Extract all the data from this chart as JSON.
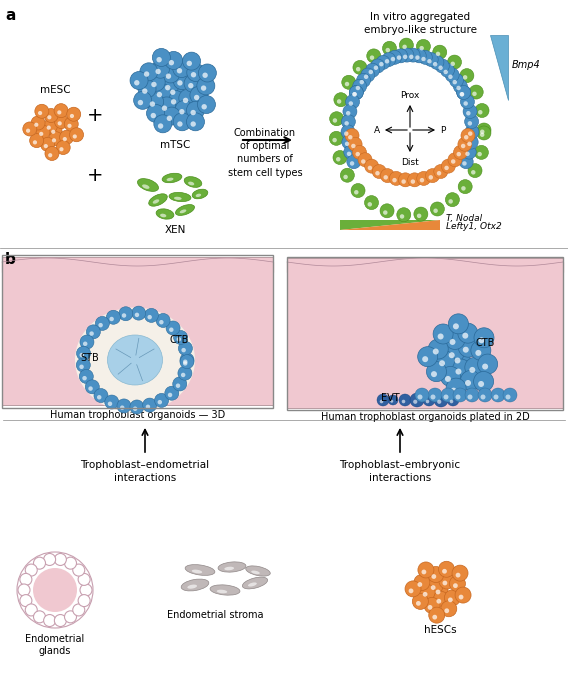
{
  "bg_color": "#ffffff",
  "orange_cell_color": "#E8883A",
  "orange_cell_edge": "#C86820",
  "blue_cell_color": "#4A90C4",
  "blue_cell_edge": "#2A6A9A",
  "green_cell_color": "#6AAF3A",
  "green_cell_edge": "#4A8F1A",
  "pink_bg": "#F0C8D0",
  "cream_bg": "#F5F0E8",
  "gray_cell_color": "#C0B8B8",
  "gray_cell_edge": "#908888",
  "light_blue_inner": "#A8D0E8",
  "dark_blue_evt": "#3060A0",
  "dark_blue_evt_edge": "#104080",
  "panel_a_label": "a",
  "panel_b_label": "b",
  "mesc_label": "mESC",
  "mtsc_label": "mTSC",
  "xen_label": "XEN",
  "combo_text": "Combination\nof optimal\nnumbers of\nstem cell types",
  "invitro_title": "In vitro aggregated\nembryo-like structure",
  "bmp4_label": "Bmp4",
  "prox_label": "Prox",
  "dist_label": "Dist",
  "a_label": "A",
  "p_label": "P",
  "t_nodal_label": "T, Nodal",
  "lefty_label": "Lefty1, Otx2",
  "stb_label": "STB",
  "ctb_label": "CTB",
  "evt_label": "EVT",
  "h3d_label": "Human trophoblast organoids — 3D",
  "h2d_label": "Human trophoblast organoids plated in 2D",
  "endo_glands_label": "Endometrial\nglands",
  "endo_stroma_label": "Endometrial stroma",
  "hescs_label": "hESCs",
  "troph_endo_label": "Trophoblast–endometrial\ninteractions",
  "troph_embryo_label": "Trophoblast–embryonic\ninteractions"
}
